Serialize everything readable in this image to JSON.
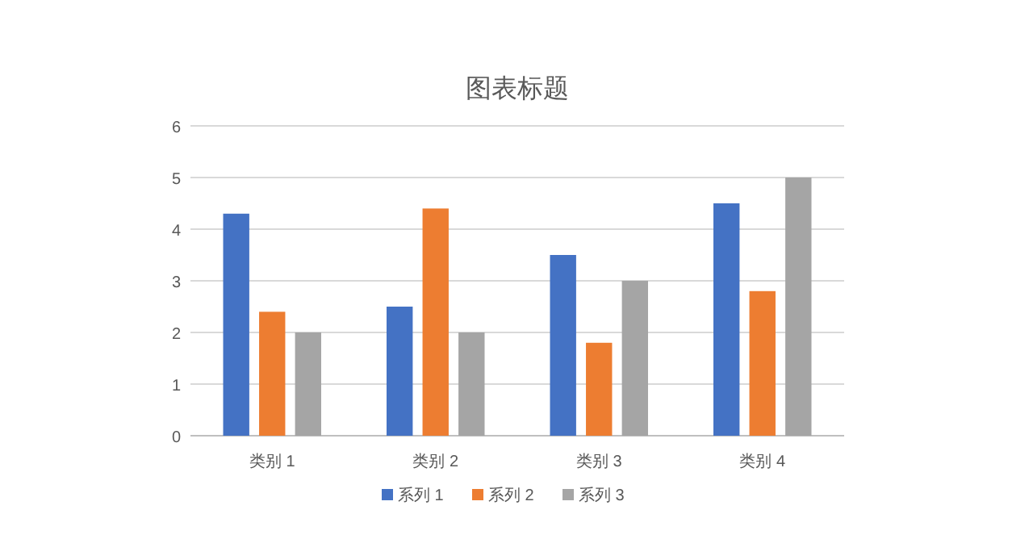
{
  "chart_data": {
    "type": "bar",
    "title": "图表标题",
    "categories": [
      "类别 1",
      "类别 2",
      "类别 3",
      "类别 4"
    ],
    "series": [
      {
        "name": "系列 1",
        "color": "#4472c4",
        "values": [
          4.3,
          2.5,
          3.5,
          4.5
        ]
      },
      {
        "name": "系列 2",
        "color": "#ed7d31",
        "values": [
          2.4,
          4.4,
          1.8,
          2.8
        ]
      },
      {
        "name": "系列 3",
        "color": "#a5a5a5",
        "values": [
          2,
          2,
          3,
          5
        ]
      }
    ],
    "ylim": [
      0,
      6
    ],
    "yticks": [
      0,
      1,
      2,
      3,
      4,
      5,
      6
    ],
    "grid": "y",
    "legend": "bottom"
  }
}
